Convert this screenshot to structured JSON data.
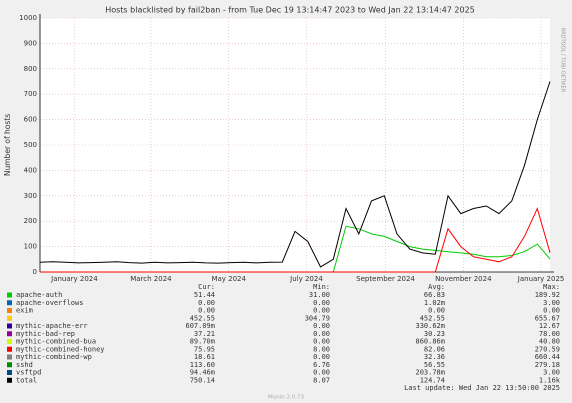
{
  "chart_data": {
    "type": "line",
    "title": "Hosts blacklisted by fail2ban - from Tue Dec 19 13:14:47 2023 to Wed Jan 22 13:14:47 2025",
    "y_label": "Number of hosts",
    "side_label": "RRDTOOL / TOBI OETIKER",
    "x": [
      0,
      10,
      20,
      30,
      40,
      50,
      60,
      70,
      80,
      90,
      100,
      110,
      120,
      130,
      140,
      150,
      160,
      170,
      180,
      190,
      200,
      210,
      220,
      230,
      240,
      250,
      260,
      270,
      280,
      290,
      300,
      310,
      320,
      330,
      340,
      350,
      360,
      370,
      380,
      390,
      400
    ],
    "xlim": [
      0,
      400
    ],
    "xticks": [
      {
        "value": 27,
        "label": "January 2024"
      },
      {
        "value": 87,
        "label": "March 2024"
      },
      {
        "value": 148,
        "label": "May 2024"
      },
      {
        "value": 209,
        "label": "July 2024"
      },
      {
        "value": 271,
        "label": "September 2024"
      },
      {
        "value": 332,
        "label": "November 2024"
      },
      {
        "value": 393,
        "label": "January 2025"
      }
    ],
    "ylim": [
      0,
      1000
    ],
    "yticks": [
      0,
      100,
      200,
      300,
      400,
      500,
      600,
      700,
      800,
      900,
      1000
    ],
    "grid": true,
    "legend_columns": [
      "Cur:",
      "Min:",
      "Avg:",
      "Max:"
    ],
    "series": [
      {
        "name": "apache-auth",
        "color": "#00cc00",
        "stats": [
          "51.44",
          "31.00",
          "66.83",
          "189.92"
        ],
        "values": [
          0,
          0,
          0,
          0,
          0,
          0,
          0,
          0,
          0,
          0,
          0,
          0,
          0,
          0,
          0,
          0,
          0,
          0,
          0,
          0,
          0,
          0,
          0,
          0,
          180,
          170,
          150,
          140,
          120,
          100,
          90,
          85,
          80,
          75,
          70,
          60,
          60,
          65,
          80,
          110,
          51
        ]
      },
      {
        "name": "apache-overflows",
        "color": "#0066b3",
        "stats": [
          "0.00",
          "0.00",
          "1.02m",
          "3.00"
        ]
      },
      {
        "name": "exim",
        "color": "#ff8000",
        "stats": [
          "0.00",
          "0.00",
          "0.00",
          "0.00"
        ]
      },
      {
        "name": null,
        "color": "#ffcc00",
        "stats": [
          "452.55",
          "304.79",
          "452.55",
          "655.67"
        ]
      },
      {
        "name": "mythic-apache-err",
        "color": "#330099",
        "stats": [
          "607.09m",
          "0.00",
          "330.62m",
          "12.67"
        ]
      },
      {
        "name": "mythic-bad-rep",
        "color": "#990099",
        "stats": [
          "37.21",
          "0.00",
          "30.23",
          "78.00"
        ]
      },
      {
        "name": "mythic-combined-bua",
        "color": "#ccff00",
        "stats": [
          "89.70m",
          "0.00",
          "860.86m",
          "40.80"
        ]
      },
      {
        "name": "mythic-combined-honey",
        "color": "#ff0000",
        "stats": [
          "75.95",
          "8.00",
          "82.06",
          "270.59"
        ],
        "values": [
          0,
          0,
          0,
          0,
          0,
          0,
          0,
          0,
          0,
          0,
          0,
          0,
          0,
          0,
          0,
          0,
          0,
          0,
          0,
          0,
          0,
          0,
          0,
          0,
          0,
          0,
          0,
          0,
          0,
          0,
          0,
          0,
          170,
          100,
          60,
          50,
          40,
          60,
          140,
          250,
          76
        ]
      },
      {
        "name": "mythic-combined-wp",
        "color": "#808080",
        "stats": [
          "18.61",
          "0.00",
          "32.36",
          "660.44"
        ]
      },
      {
        "name": "sshd",
        "color": "#008f00",
        "stats": [
          "113.60",
          "6.76",
          "56.55",
          "279.18"
        ]
      },
      {
        "name": "vsftpd",
        "color": "#00487d",
        "stats": [
          "94.46m",
          "0.00",
          "203.78m",
          "3.00"
        ]
      },
      {
        "name": "total",
        "color": "#000000",
        "stats": [
          "750.14",
          "8.07",
          "124.74",
          "1.16k"
        ],
        "values": [
          38,
          40,
          38,
          36,
          37,
          38,
          40,
          37,
          35,
          38,
          36,
          37,
          38,
          36,
          35,
          37,
          38,
          36,
          38,
          39,
          160,
          120,
          20,
          50,
          250,
          150,
          280,
          300,
          150,
          90,
          75,
          70,
          300,
          230,
          250,
          260,
          230,
          280,
          420,
          600,
          750
        ]
      }
    ],
    "last_update": "Last update: Wed Jan 22 13:50:00 2025",
    "footer": "Munin 2.0.73"
  }
}
